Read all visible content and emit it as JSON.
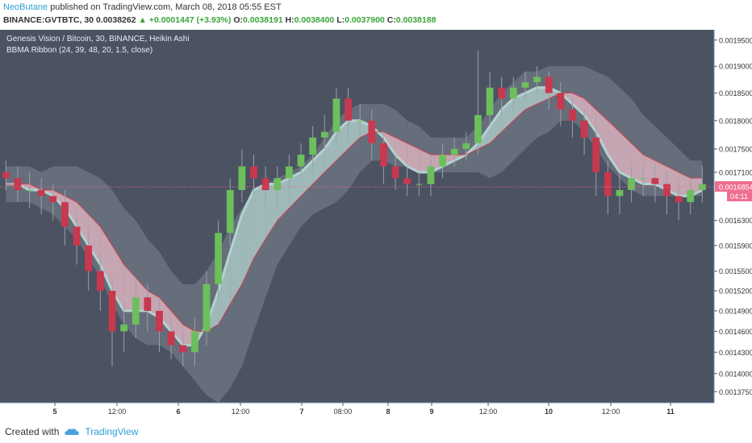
{
  "header": {
    "author": "NeoButane",
    "published": "published on TradingView.com, March 08, 2018 05:55 EST"
  },
  "quote": {
    "symbol": "BINANCE:GVTBTC, 30",
    "last": "0.0038262",
    "change": "▲ +0.0001447 (+3.93%)",
    "open_label": "O:",
    "open": "0.0038191",
    "high_label": "H:",
    "high": "0.0038400",
    "low_label": "L:",
    "low": "0.0037900",
    "close_label": "C:",
    "close": "0.0038188"
  },
  "chart_data": {
    "type": "candlestick",
    "title": "Genesis Vision / Bitcoin, 30, BINANCE, Heikin Ashi",
    "subtitle": "BBMA Ribbon (24, 39, 48, 20, 1.5, close)",
    "log_scale": true,
    "grid": false,
    "up_color": "#6cbf5c",
    "down_color": "#c8384f",
    "wick_color": "#9aa0a8",
    "x": [
      0,
      1,
      2,
      3,
      4,
      5,
      6,
      7,
      8,
      9,
      10,
      11,
      12,
      13,
      14,
      15,
      16,
      17,
      18,
      19,
      20,
      21,
      22,
      23,
      24,
      25,
      26,
      27,
      28,
      29,
      30,
      31,
      32,
      33,
      34,
      35,
      36,
      37,
      38,
      39,
      40,
      41,
      42,
      43,
      44,
      45,
      46,
      47,
      48,
      49,
      50,
      51,
      52,
      53,
      54,
      55,
      56,
      57,
      58,
      59
    ],
    "open": [
      0.00171,
      0.0017,
      0.00168,
      0.00168,
      0.00167,
      0.00166,
      0.00162,
      0.00159,
      0.00155,
      0.00152,
      0.00146,
      0.00147,
      0.00151,
      0.00149,
      0.00146,
      0.00144,
      0.00143,
      0.00146,
      0.00153,
      0.00161,
      0.00168,
      0.00172,
      0.0017,
      0.00168,
      0.0017,
      0.00172,
      0.00174,
      0.00177,
      0.00178,
      0.00184,
      0.0018,
      0.0018,
      0.00176,
      0.00172,
      0.0017,
      0.00169,
      0.00169,
      0.00172,
      0.00174,
      0.00175,
      0.00176,
      0.00181,
      0.00186,
      0.00184,
      0.00186,
      0.00187,
      0.00188,
      0.00185,
      0.00182,
      0.0018,
      0.00177,
      0.00171,
      0.00167,
      0.00168,
      0.0017,
      0.0017,
      0.00169,
      0.00167,
      0.00166,
      0.00168
    ],
    "high": [
      0.00173,
      0.00172,
      0.00171,
      0.0017,
      0.00169,
      0.00168,
      0.00164,
      0.00161,
      0.00158,
      0.00154,
      0.0015,
      0.00154,
      0.00153,
      0.00151,
      0.00148,
      0.00146,
      0.00148,
      0.00155,
      0.00163,
      0.0017,
      0.00175,
      0.00174,
      0.00172,
      0.00172,
      0.00174,
      0.00176,
      0.00179,
      0.00181,
      0.00186,
      0.00186,
      0.00183,
      0.00182,
      0.00178,
      0.00174,
      0.00172,
      0.00171,
      0.00174,
      0.00176,
      0.00177,
      0.00178,
      0.00193,
      0.00189,
      0.00188,
      0.00188,
      0.00189,
      0.0019,
      0.00189,
      0.00187,
      0.00184,
      0.00182,
      0.00179,
      0.00173,
      0.00171,
      0.00172,
      0.00172,
      0.00172,
      0.00171,
      0.00169,
      0.0017,
      0.00172
    ],
    "low": [
      0.00168,
      0.00166,
      0.00165,
      0.00164,
      0.00163,
      0.00159,
      0.00156,
      0.00152,
      0.00149,
      0.00141,
      0.00143,
      0.00145,
      0.00146,
      0.00143,
      0.00142,
      0.00141,
      0.00141,
      0.00144,
      0.00151,
      0.00159,
      0.00166,
      0.00167,
      0.00165,
      0.00166,
      0.00168,
      0.0017,
      0.00172,
      0.00175,
      0.00176,
      0.00177,
      0.00177,
      0.00173,
      0.00169,
      0.00168,
      0.00167,
      0.00167,
      0.00167,
      0.0017,
      0.00172,
      0.00173,
      0.00174,
      0.00179,
      0.00181,
      0.00182,
      0.00184,
      0.00185,
      0.00182,
      0.00179,
      0.00177,
      0.00174,
      0.00167,
      0.00164,
      0.00164,
      0.00166,
      0.00167,
      0.00166,
      0.00164,
      0.00163,
      0.00164,
      0.00166
    ],
    "close": [
      0.0017,
      0.00168,
      0.00168,
      0.00167,
      0.00166,
      0.00162,
      0.00159,
      0.00155,
      0.00152,
      0.00146,
      0.00147,
      0.00151,
      0.00149,
      0.00146,
      0.00144,
      0.00143,
      0.00146,
      0.00153,
      0.00161,
      0.00168,
      0.00172,
      0.0017,
      0.00168,
      0.0017,
      0.00172,
      0.00174,
      0.00177,
      0.00178,
      0.00184,
      0.0018,
      0.0018,
      0.00176,
      0.00172,
      0.0017,
      0.00169,
      0.00169,
      0.00172,
      0.00174,
      0.00175,
      0.00176,
      0.00181,
      0.00186,
      0.00184,
      0.00186,
      0.00187,
      0.00188,
      0.00185,
      0.00182,
      0.0018,
      0.00177,
      0.00171,
      0.00167,
      0.00168,
      0.0017,
      0.0017,
      0.00169,
      0.00167,
      0.00166,
      0.00168,
      0.00169
    ],
    "ribbon": {
      "up_color": "#b3d3cf",
      "down_color": "#e7b9c4",
      "fast": [
        0.00169,
        0.00169,
        0.00168,
        0.00168,
        0.00167,
        0.00165,
        0.00162,
        0.00159,
        0.00156,
        0.00152,
        0.00149,
        0.00149,
        0.00149,
        0.00148,
        0.00146,
        0.00144,
        0.00144,
        0.00147,
        0.00152,
        0.00158,
        0.00164,
        0.00168,
        0.00169,
        0.00169,
        0.0017,
        0.00171,
        0.00173,
        0.00175,
        0.00178,
        0.0018,
        0.0018,
        0.00179,
        0.00177,
        0.00174,
        0.00172,
        0.00171,
        0.00171,
        0.00172,
        0.00173,
        0.00174,
        0.00176,
        0.00179,
        0.00182,
        0.00184,
        0.00185,
        0.00186,
        0.00186,
        0.00185,
        0.00183,
        0.00181,
        0.00178,
        0.00174,
        0.00171,
        0.0017,
        0.00169,
        0.00169,
        0.00168,
        0.00167,
        0.00167,
        0.00168
      ],
      "slow": [
        0.00169,
        0.00169,
        0.00169,
        0.00168,
        0.00168,
        0.00167,
        0.00166,
        0.00164,
        0.00162,
        0.00159,
        0.00156,
        0.00154,
        0.00152,
        0.00151,
        0.00149,
        0.00147,
        0.00146,
        0.00146,
        0.00147,
        0.0015,
        0.00153,
        0.00157,
        0.0016,
        0.00163,
        0.00165,
        0.00167,
        0.00169,
        0.00171,
        0.00173,
        0.00175,
        0.00177,
        0.00178,
        0.00178,
        0.00177,
        0.00176,
        0.00175,
        0.00174,
        0.00174,
        0.00174,
        0.00174,
        0.00175,
        0.00176,
        0.00178,
        0.0018,
        0.00182,
        0.00183,
        0.00184,
        0.00185,
        0.00185,
        0.00184,
        0.00182,
        0.0018,
        0.00178,
        0.00176,
        0.00174,
        0.00173,
        0.00172,
        0.00171,
        0.0017,
        0.0017
      ]
    },
    "basis_color": "#d0434f",
    "band": {
      "color": "#c9cfd6",
      "upper": [
        0.00172,
        0.00172,
        0.00172,
        0.00171,
        0.00172,
        0.00172,
        0.00172,
        0.00171,
        0.0017,
        0.00168,
        0.00165,
        0.00163,
        0.0016,
        0.00158,
        0.00155,
        0.00153,
        0.00153,
        0.00155,
        0.00158,
        0.00162,
        0.00165,
        0.00168,
        0.00169,
        0.0017,
        0.00171,
        0.00172,
        0.00174,
        0.00177,
        0.0018,
        0.00182,
        0.00183,
        0.00183,
        0.00183,
        0.00182,
        0.0018,
        0.00179,
        0.00177,
        0.00177,
        0.00177,
        0.00177,
        0.00179,
        0.00182,
        0.00185,
        0.00187,
        0.00189,
        0.00189,
        0.0019,
        0.0019,
        0.0019,
        0.0019,
        0.00189,
        0.00188,
        0.00186,
        0.00184,
        0.00181,
        0.00179,
        0.00177,
        0.00175,
        0.00173,
        0.00173
      ],
      "lower": [
        0.00166,
        0.00166,
        0.00166,
        0.00165,
        0.00164,
        0.00162,
        0.0016,
        0.00157,
        0.00154,
        0.0015,
        0.00147,
        0.00145,
        0.00144,
        0.00144,
        0.00143,
        0.00141,
        0.00139,
        0.00137,
        0.00136,
        0.00138,
        0.00141,
        0.00146,
        0.00151,
        0.00156,
        0.00159,
        0.00162,
        0.00164,
        0.00165,
        0.00166,
        0.00168,
        0.00171,
        0.00173,
        0.00173,
        0.00172,
        0.00172,
        0.00171,
        0.00171,
        0.00171,
        0.00171,
        0.00171,
        0.00171,
        0.0017,
        0.00171,
        0.00173,
        0.00175,
        0.00177,
        0.00178,
        0.0018,
        0.0018,
        0.00178,
        0.00175,
        0.00172,
        0.0017,
        0.00168,
        0.00167,
        0.00167,
        0.00167,
        0.00167,
        0.00167,
        0.00167
      ]
    },
    "last_price": 0.0016854,
    "countdown": "04:11",
    "price_color": "#ef6d8f",
    "xlim": [
      -0.5,
      60
    ],
    "ylim": [
      0.00136,
      0.00197
    ],
    "yticks": [
      {
        "value": 0.00195,
        "label": "0.0019500"
      },
      {
        "value": 0.0019,
        "label": "0.0019000"
      },
      {
        "value": 0.00185,
        "label": "0.0018500"
      },
      {
        "value": 0.0018,
        "label": "0.0018000"
      },
      {
        "value": 0.00175,
        "label": "0.0017500"
      },
      {
        "value": 0.00171,
        "label": "0.0017100"
      },
      {
        "value": 0.00163,
        "label": "0.0016300"
      },
      {
        "value": 0.00159,
        "label": "0.0015900"
      },
      {
        "value": 0.00155,
        "label": "0.0015500"
      },
      {
        "value": 0.00152,
        "label": "0.0015200"
      },
      {
        "value": 0.00149,
        "label": "0.0014900"
      },
      {
        "value": 0.00146,
        "label": "0.0014600"
      },
      {
        "value": 0.00143,
        "label": "0.0014300"
      },
      {
        "value": 0.0014,
        "label": "0.0014000"
      },
      {
        "value": 0.001375,
        "label": "0.0013750"
      }
    ],
    "xticks": [
      {
        "value": 4.15,
        "label": "5"
      },
      {
        "value": 9.41,
        "label": "12:00"
      },
      {
        "value": 14.61,
        "label": "6"
      },
      {
        "value": 19.87,
        "label": "12:00"
      },
      {
        "value": 25.07,
        "label": "7"
      },
      {
        "value": 28.55,
        "label": "08:00"
      },
      {
        "value": 32.38,
        "label": "8"
      },
      {
        "value": 36.07,
        "label": "9"
      },
      {
        "value": 40.86,
        "label": "12:00"
      },
      {
        "value": 45.99,
        "label": "10"
      },
      {
        "value": 51.25,
        "label": "12:00"
      },
      {
        "value": 56.31,
        "label": "11"
      }
    ]
  },
  "footer": {
    "created": "Created with",
    "brand": "TradingView"
  }
}
